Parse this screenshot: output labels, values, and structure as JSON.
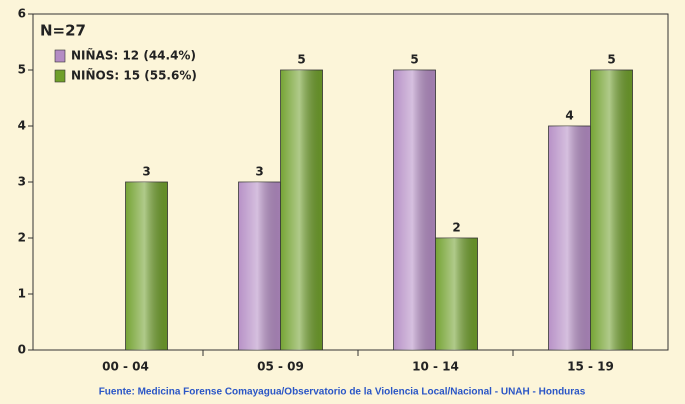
{
  "chart_data": {
    "type": "bar",
    "title": "N=27",
    "categories": [
      "00 - 04",
      "05 - 09",
      "10 - 14",
      "15 - 19"
    ],
    "series": [
      {
        "name": "NIÑAS: 12 (44.4%)",
        "color": "#b48cc4",
        "values": [
          0,
          3,
          5,
          4
        ],
        "value_labels": [
          null,
          "3",
          "5",
          "4"
        ]
      },
      {
        "name": "NIÑOS: 15 (55.6%)",
        "color": "#6f9f2a",
        "values": [
          3,
          5,
          2,
          5
        ]
      }
    ],
    "ylim": [
      0,
      6
    ],
    "yticks": [
      0,
      1,
      2,
      3,
      4,
      5,
      6
    ],
    "legend": "upper left",
    "source": "Fuente: Medicina Forense Comayagua/Observatorio de la Violencia Local/Nacional - UNAH - Honduras"
  }
}
